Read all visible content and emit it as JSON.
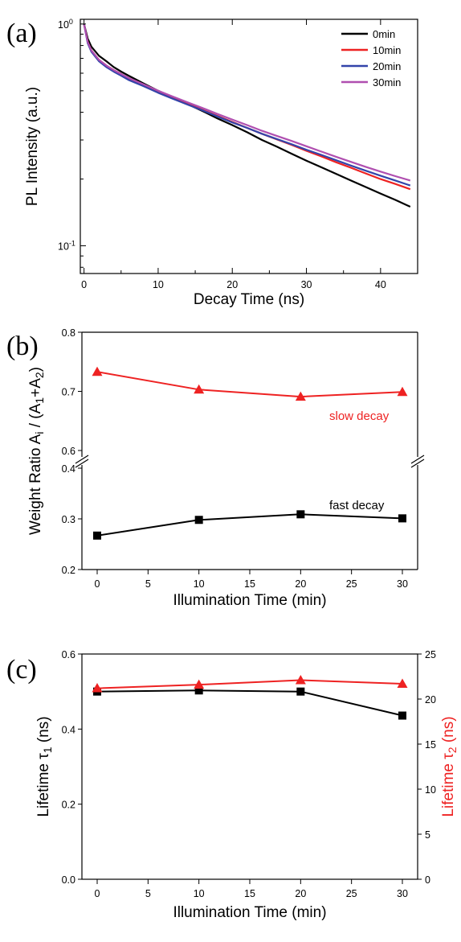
{
  "chart_data": [
    {
      "panel": "(a)",
      "type": "line",
      "xlabel": "Decay Time (ns)",
      "ylabel": "PL Intensity (a.u.)",
      "xlim": [
        -0.5,
        45
      ],
      "ylim": [
        0.075,
        1.05
      ],
      "yscale": "log",
      "grid": false,
      "legend_position": "top-right",
      "x_ticks": [
        0,
        10,
        20,
        30,
        40
      ],
      "y_ticks": [
        {
          "value": 1,
          "base": "10",
          "exp": "0"
        },
        {
          "value": 0.1,
          "base": "10",
          "exp": "-1"
        }
      ],
      "series": [
        {
          "name": "0min",
          "color": "#000000",
          "x": [
            0,
            0.5,
            1,
            2,
            3,
            4,
            5,
            6,
            8,
            10,
            12,
            14,
            16,
            18,
            20,
            22,
            24,
            26,
            28,
            30,
            32,
            34,
            36,
            38,
            40,
            42,
            44
          ],
          "y": [
            1.0,
            0.86,
            0.79,
            0.72,
            0.68,
            0.64,
            0.61,
            0.585,
            0.54,
            0.5,
            0.465,
            0.435,
            0.405,
            0.375,
            0.35,
            0.325,
            0.3,
            0.28,
            0.26,
            0.242,
            0.226,
            0.211,
            0.197,
            0.184,
            0.172,
            0.161,
            0.15
          ]
        },
        {
          "name": "10min",
          "color": "#ee2222",
          "x": [
            0,
            0.5,
            1,
            2,
            3,
            4,
            5,
            6,
            8,
            10,
            12,
            14,
            16,
            18,
            20,
            22,
            24,
            26,
            28,
            30,
            32,
            34,
            36,
            38,
            40,
            42,
            44
          ],
          "y": [
            1.0,
            0.83,
            0.76,
            0.69,
            0.65,
            0.62,
            0.595,
            0.57,
            0.53,
            0.495,
            0.465,
            0.437,
            0.41,
            0.385,
            0.362,
            0.34,
            0.32,
            0.302,
            0.285,
            0.268,
            0.253,
            0.238,
            0.225,
            0.212,
            0.2,
            0.19,
            0.18
          ]
        },
        {
          "name": "20min",
          "color": "#3344aa",
          "x": [
            0,
            0.5,
            1,
            2,
            3,
            4,
            5,
            6,
            8,
            10,
            12,
            14,
            16,
            18,
            20,
            22,
            24,
            26,
            28,
            30,
            32,
            34,
            36,
            38,
            40,
            42,
            44
          ],
          "y": [
            1.0,
            0.82,
            0.75,
            0.68,
            0.64,
            0.61,
            0.585,
            0.56,
            0.525,
            0.49,
            0.46,
            0.433,
            0.408,
            0.383,
            0.36,
            0.34,
            0.32,
            0.303,
            0.287,
            0.271,
            0.257,
            0.243,
            0.23,
            0.218,
            0.207,
            0.197,
            0.187
          ]
        },
        {
          "name": "30min",
          "color": "#b04fb0",
          "x": [
            0,
            0.5,
            1,
            2,
            3,
            4,
            5,
            6,
            8,
            10,
            12,
            14,
            16,
            18,
            20,
            22,
            24,
            26,
            28,
            30,
            32,
            34,
            36,
            38,
            40,
            42,
            44
          ],
          "y": [
            1.0,
            0.83,
            0.76,
            0.69,
            0.65,
            0.62,
            0.595,
            0.572,
            0.535,
            0.5,
            0.47,
            0.443,
            0.418,
            0.393,
            0.371,
            0.35,
            0.33,
            0.313,
            0.297,
            0.281,
            0.266,
            0.252,
            0.239,
            0.227,
            0.216,
            0.206,
            0.197
          ]
        }
      ]
    },
    {
      "panel": "(b)",
      "type": "line",
      "xlabel": "Illumination Time (min)",
      "ylabel_parts": [
        "Weight Ratio A",
        "i",
        " / (A",
        "1",
        "+A",
        "2",
        ")"
      ],
      "xlim": [
        -1.5,
        31.5
      ],
      "broken_y_axis": true,
      "upper_ylim": [
        0.6,
        0.8
      ],
      "lower_ylim": [
        0.2,
        0.4
      ],
      "upper_y_ticks": [
        "0.6",
        "0.7",
        "0.8"
      ],
      "lower_y_ticks": [
        "0.2",
        "0.3",
        "0.4"
      ],
      "x_ticks": [
        0,
        5,
        10,
        15,
        20,
        25,
        30
      ],
      "grid": false,
      "annotations": [
        {
          "text": "slow decay",
          "color": "#ee2222"
        },
        {
          "text": "fast decay",
          "color": "#000000"
        }
      ],
      "series": [
        {
          "label": "slow decay",
          "color": "#ee2222",
          "marker": "triangle",
          "x": [
            0,
            10,
            20,
            30
          ],
          "y": [
            0.733,
            0.703,
            0.691,
            0.699
          ]
        },
        {
          "label": "fast decay",
          "color": "#000000",
          "marker": "square",
          "x": [
            0,
            10,
            20,
            30
          ],
          "y": [
            0.267,
            0.298,
            0.309,
            0.301
          ]
        }
      ]
    },
    {
      "panel": "(c)",
      "type": "line",
      "xlabel": "Illumination Time (min)",
      "ylabel_left_parts": [
        "Lifetime τ",
        "1",
        " (ns)"
      ],
      "ylabel_right_parts": [
        "Lifetime τ",
        "2",
        " (ns)"
      ],
      "xlim": [
        -1.5,
        31.5
      ],
      "ylim_left": [
        0,
        0.6
      ],
      "ylim_right": [
        0,
        25
      ],
      "left_y_ticks": [
        "0.0",
        "0.2",
        "0.4",
        "0.6"
      ],
      "right_y_ticks": [
        "0",
        "5",
        "10",
        "15",
        "20",
        "25"
      ],
      "x_ticks": [
        0,
        5,
        10,
        15,
        20,
        25,
        30
      ],
      "grid": false,
      "series": [
        {
          "axis": "left",
          "color": "#000000",
          "marker": "square",
          "x": [
            0,
            10,
            20,
            30
          ],
          "y": [
            0.5,
            0.503,
            0.5,
            0.436
          ]
        },
        {
          "axis": "right",
          "color": "#ee2222",
          "marker": "triangle",
          "x": [
            0,
            10,
            20,
            30
          ],
          "y": [
            21.2,
            21.6,
            22.1,
            21.7
          ]
        }
      ]
    }
  ]
}
